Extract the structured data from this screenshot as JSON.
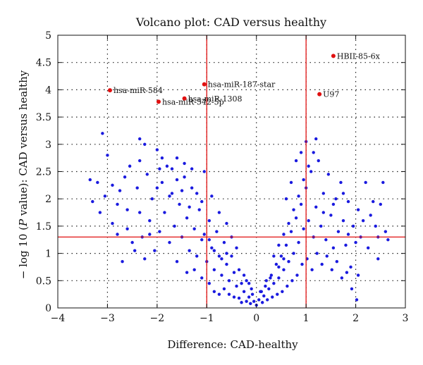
{
  "chart_data": {
    "type": "scatter",
    "title": "Volcano plot: CAD versus healthy",
    "xlabel": "Difference: CAD-healthy",
    "ylabel_parts": [
      "− log 10 (",
      "P",
      " value): CAD versus healthy"
    ],
    "xlim": [
      -4,
      3
    ],
    "ylim": [
      0,
      5
    ],
    "x_ticks": [
      -4,
      -3,
      -2,
      -1,
      0,
      1,
      2,
      3
    ],
    "y_ticks": [
      0,
      0.5,
      1,
      1.5,
      2,
      2.5,
      3,
      3.5,
      4,
      4.5,
      5
    ],
    "x_tick_labels": [
      "−4",
      "−3",
      "−2",
      "−1",
      "0",
      "1",
      "2",
      "3"
    ],
    "y_tick_labels": [
      "0",
      "0.5",
      "1",
      "1.5",
      "2",
      "2.5",
      "3",
      "3.5",
      "4",
      "4.5",
      "5"
    ],
    "grid": "dotted",
    "threshold_lines": {
      "x": [
        -1,
        1
      ],
      "y": [
        1.3
      ]
    },
    "colors": {
      "points": "#1a1adf",
      "highlight": "#e01010",
      "threshold": "#e01010",
      "grid": "#222222"
    },
    "highlighted": [
      {
        "x": 1.55,
        "y": 4.62,
        "label": "HBII-85-6x"
      },
      {
        "x": -2.95,
        "y": 3.99,
        "label": "hsa-miR-584"
      },
      {
        "x": -1.05,
        "y": 4.1,
        "label": "hsa-miR-187-star"
      },
      {
        "x": -1.45,
        "y": 3.84,
        "label": "hsa-miR-1308"
      },
      {
        "x": -1.97,
        "y": 3.78,
        "label": "hsa-miR-542-5p"
      },
      {
        "x": 1.27,
        "y": 3.92,
        "label": "U97"
      }
    ],
    "series": [
      {
        "points": [
          [
            -3.1,
            3.2
          ],
          [
            -3.35,
            2.35
          ],
          [
            -3.2,
            2.3
          ],
          [
            -3.0,
            2.8
          ],
          [
            -3.05,
            2.05
          ],
          [
            -2.9,
            1.55
          ],
          [
            -2.8,
            1.9
          ],
          [
            -2.75,
            2.15
          ],
          [
            -2.6,
            1.8
          ],
          [
            -2.55,
            2.6
          ],
          [
            -2.4,
            2.2
          ],
          [
            -2.35,
            3.1
          ],
          [
            -2.3,
            1.3
          ],
          [
            -2.2,
            2.45
          ],
          [
            -2.15,
            1.6
          ],
          [
            -2.1,
            2.0
          ],
          [
            -2.0,
            2.9
          ],
          [
            -1.95,
            1.4
          ],
          [
            -1.9,
            2.3
          ],
          [
            -1.85,
            1.75
          ],
          [
            -1.8,
            2.6
          ],
          [
            -1.75,
            1.2
          ],
          [
            -1.7,
            2.1
          ],
          [
            -1.65,
            1.5
          ],
          [
            -1.6,
            2.75
          ],
          [
            -1.55,
            1.9
          ],
          [
            -1.5,
            1.3
          ],
          [
            -1.45,
            2.4
          ],
          [
            -1.4,
            1.65
          ],
          [
            -1.35,
            1.05
          ],
          [
            -1.3,
            2.2
          ],
          [
            -1.25,
            1.45
          ],
          [
            -1.2,
            0.95
          ],
          [
            -1.15,
            1.8
          ],
          [
            -1.1,
            1.25
          ],
          [
            -1.05,
            2.5
          ],
          [
            -1.0,
            0.85
          ],
          [
            -0.95,
            1.6
          ],
          [
            -0.9,
            1.1
          ],
          [
            -0.85,
            0.7
          ],
          [
            -0.8,
            1.4
          ],
          [
            -0.75,
            0.95
          ],
          [
            -0.7,
            0.6
          ],
          [
            -0.65,
            1.2
          ],
          [
            -0.6,
            0.8
          ],
          [
            -0.55,
            0.5
          ],
          [
            -0.5,
            0.95
          ],
          [
            -0.45,
            0.65
          ],
          [
            -0.4,
            0.4
          ],
          [
            -0.35,
            0.7
          ],
          [
            -0.3,
            0.45
          ],
          [
            -0.25,
            0.3
          ],
          [
            -0.2,
            0.5
          ],
          [
            -0.15,
            0.2
          ],
          [
            -0.1,
            0.35
          ],
          [
            -0.05,
            0.12
          ],
          [
            0.0,
            0.05
          ],
          [
            0.05,
            0.15
          ],
          [
            0.1,
            0.3
          ],
          [
            0.15,
            0.22
          ],
          [
            0.2,
            0.5
          ],
          [
            0.25,
            0.35
          ],
          [
            0.3,
            0.6
          ],
          [
            0.35,
            0.45
          ],
          [
            0.4,
            0.8
          ],
          [
            0.45,
            0.55
          ],
          [
            0.5,
            0.95
          ],
          [
            0.55,
            0.7
          ],
          [
            0.6,
            1.15
          ],
          [
            0.65,
            0.85
          ],
          [
            0.7,
            1.4
          ],
          [
            0.75,
            1.0
          ],
          [
            0.8,
            1.65
          ],
          [
            0.85,
            1.2
          ],
          [
            0.9,
            1.9
          ],
          [
            0.95,
            1.45
          ],
          [
            1.0,
            2.2
          ],
          [
            1.05,
            1.6
          ],
          [
            1.1,
            2.5
          ],
          [
            1.15,
            1.3
          ],
          [
            1.2,
            1.85
          ],
          [
            1.25,
            2.7
          ],
          [
            1.3,
            1.5
          ],
          [
            1.35,
            2.1
          ],
          [
            1.4,
            1.25
          ],
          [
            1.45,
            2.45
          ],
          [
            1.5,
            1.7
          ],
          [
            1.55,
            1.1
          ],
          [
            1.6,
            2.0
          ],
          [
            1.65,
            1.4
          ],
          [
            1.7,
            2.3
          ],
          [
            1.75,
            1.6
          ],
          [
            1.8,
            1.15
          ],
          [
            1.85,
            1.95
          ],
          [
            1.9,
            0.75
          ],
          [
            1.95,
            1.5
          ],
          [
            2.0,
            1.2
          ],
          [
            2.05,
            0.6
          ],
          [
            2.1,
            1.3
          ],
          [
            2.2,
            2.3
          ],
          [
            2.25,
            1.1
          ],
          [
            2.3,
            1.7
          ],
          [
            2.4,
            1.5
          ],
          [
            2.45,
            0.9
          ],
          [
            2.55,
            2.3
          ],
          [
            2.6,
            1.4
          ],
          [
            2.65,
            1.25
          ],
          [
            2.5,
            1.9
          ],
          [
            -3.3,
            1.95
          ],
          [
            -2.7,
            0.85
          ],
          [
            -2.45,
            1.05
          ],
          [
            -2.25,
            0.9
          ],
          [
            -2.05,
            1.05
          ],
          [
            -1.6,
            0.85
          ],
          [
            -1.4,
            0.65
          ],
          [
            -1.25,
            0.7
          ],
          [
            -1.1,
            0.55
          ],
          [
            -0.95,
            0.45
          ],
          [
            -0.85,
            0.3
          ],
          [
            -0.75,
            0.25
          ],
          [
            -0.65,
            0.35
          ],
          [
            -0.55,
            0.25
          ],
          [
            -0.45,
            0.2
          ],
          [
            -0.35,
            0.18
          ],
          [
            -0.3,
            0.1
          ],
          [
            -0.2,
            0.12
          ],
          [
            -0.12,
            0.08
          ],
          [
            0.12,
            0.1
          ],
          [
            0.22,
            0.15
          ],
          [
            0.32,
            0.2
          ],
          [
            0.42,
            0.25
          ],
          [
            0.52,
            0.3
          ],
          [
            0.62,
            0.4
          ],
          [
            0.72,
            0.5
          ],
          [
            0.82,
            0.6
          ],
          [
            0.92,
            0.8
          ],
          [
            1.02,
            0.9
          ],
          [
            1.12,
            0.7
          ],
          [
            1.22,
            1.0
          ],
          [
            1.32,
            0.8
          ],
          [
            1.42,
            0.95
          ],
          [
            1.52,
            0.7
          ],
          [
            1.62,
            0.85
          ],
          [
            1.72,
            0.55
          ],
          [
            1.82,
            0.65
          ],
          [
            1.92,
            0.35
          ],
          [
            2.02,
            0.15
          ],
          [
            -2.8,
            1.35
          ],
          [
            -2.5,
            1.2
          ],
          [
            -2.15,
            1.35
          ],
          [
            -1.95,
            2.55
          ],
          [
            -1.75,
            2.05
          ],
          [
            -1.6,
            2.35
          ],
          [
            -1.5,
            2.15
          ],
          [
            -1.35,
            1.85
          ],
          [
            -1.2,
            2.1
          ],
          [
            -1.1,
            1.95
          ],
          [
            -0.9,
            2.05
          ],
          [
            -0.75,
            1.75
          ],
          [
            -0.6,
            1.55
          ],
          [
            -0.5,
            1.3
          ],
          [
            -0.4,
            1.1
          ],
          [
            0.45,
            1.15
          ],
          [
            0.55,
            1.35
          ],
          [
            0.65,
            1.55
          ],
          [
            0.75,
            1.8
          ],
          [
            0.85,
            2.05
          ],
          [
            0.95,
            2.35
          ],
          [
            1.05,
            2.6
          ],
          [
            1.15,
            2.85
          ],
          [
            0.7,
            2.3
          ],
          [
            0.8,
            2.7
          ],
          [
            0.9,
            2.85
          ],
          [
            1.0,
            3.05
          ],
          [
            0.6,
            2.0
          ],
          [
            1.2,
            3.1
          ],
          [
            -2.35,
            2.7
          ],
          [
            -2.25,
            3.0
          ],
          [
            -2.0,
            2.2
          ],
          [
            -1.9,
            2.75
          ],
          [
            -1.7,
            2.55
          ],
          [
            -1.45,
            2.65
          ],
          [
            -1.3,
            2.55
          ],
          [
            -2.65,
            2.4
          ],
          [
            -2.9,
            2.25
          ],
          [
            -3.15,
            1.75
          ],
          [
            -2.6,
            1.45
          ],
          [
            -2.35,
            1.75
          ],
          [
            -1.05,
            1.35
          ],
          [
            -0.95,
            1.25
          ],
          [
            -0.85,
            1.05
          ],
          [
            -0.7,
            0.9
          ],
          [
            -0.6,
            1.0
          ],
          [
            0.35,
            0.95
          ],
          [
            0.45,
            0.75
          ],
          [
            0.55,
            0.9
          ],
          [
            1.35,
            1.75
          ],
          [
            1.55,
            1.9
          ],
          [
            1.75,
            2.1
          ],
          [
            1.85,
            1.35
          ],
          [
            2.05,
            1.8
          ],
          [
            2.15,
            1.6
          ],
          [
            2.35,
            1.95
          ],
          [
            2.45,
            1.3
          ],
          [
            -0.25,
            0.6
          ],
          [
            -0.15,
            0.45
          ],
          [
            -0.08,
            0.25
          ],
          [
            0.08,
            0.3
          ],
          [
            0.18,
            0.4
          ],
          [
            0.28,
            0.55
          ]
        ]
      }
    ]
  }
}
